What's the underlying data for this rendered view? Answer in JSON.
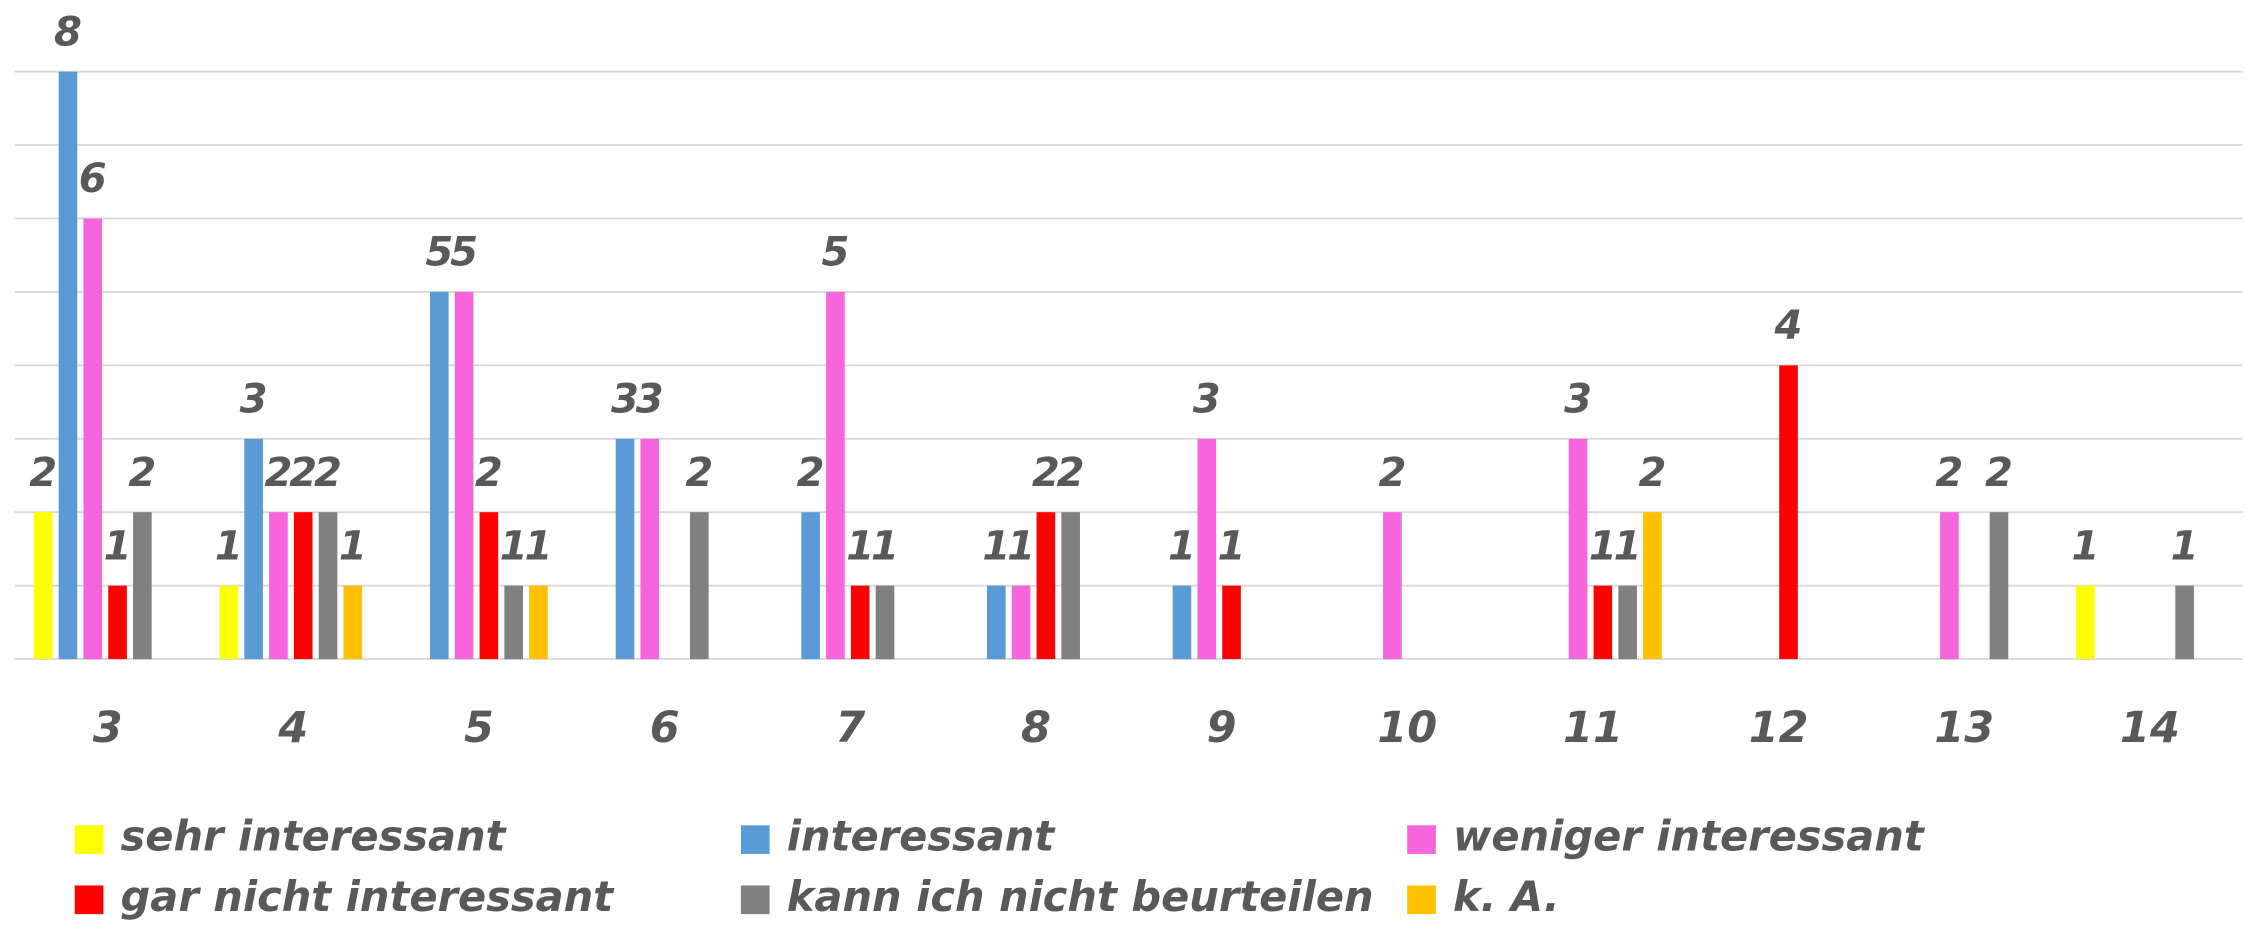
{
  "chart_data": {
    "type": "bar",
    "categories": [
      "3",
      "4",
      "5",
      "6",
      "7",
      "8",
      "9",
      "10",
      "11",
      "12",
      "13",
      "14"
    ],
    "series": [
      {
        "name": "sehr interessant",
        "color": "#ffff00",
        "values": [
          2,
          1,
          null,
          null,
          null,
          null,
          null,
          null,
          null,
          null,
          null,
          1
        ]
      },
      {
        "name": "interessant",
        "color": "#5b9bd5",
        "values": [
          8,
          3,
          5,
          3,
          2,
          1,
          1,
          null,
          null,
          null,
          null,
          null
        ]
      },
      {
        "name": "weniger interessant",
        "color": "#f765dc",
        "values": [
          6,
          2,
          5,
          3,
          5,
          1,
          3,
          2,
          3,
          null,
          2,
          null
        ]
      },
      {
        "name": "gar nicht interessant",
        "color": "#ff0000",
        "values": [
          1,
          2,
          2,
          null,
          1,
          2,
          1,
          null,
          1,
          4,
          null,
          null
        ]
      },
      {
        "name": "kann ich nicht beurteilen",
        "color": "#808080",
        "values": [
          2,
          2,
          1,
          2,
          1,
          2,
          null,
          null,
          1,
          null,
          2,
          1
        ]
      },
      {
        "name": "k. A.",
        "color": "#ffc000",
        "values": [
          null,
          1,
          1,
          null,
          null,
          null,
          null,
          null,
          2,
          null,
          null,
          null
        ]
      }
    ],
    "ylim": [
      0,
      8
    ],
    "yticks": [
      0,
      1,
      2,
      3,
      4,
      5,
      6,
      7,
      8
    ],
    "grid": true,
    "legend": "bottom"
  }
}
